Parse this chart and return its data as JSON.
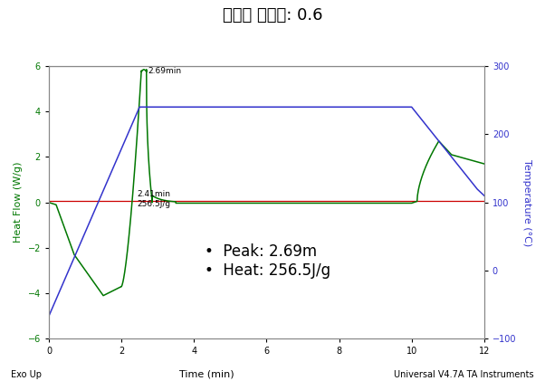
{
  "title": "경화제 당량비: 0.6",
  "xlabel": "Time (min)",
  "ylabel_left": "Heat Flow (W/g)",
  "ylabel_right": "Temperature (°C)",
  "xlim": [
    0,
    12
  ],
  "ylim_left": [
    -6,
    6
  ],
  "ylim_right": [
    -100,
    300
  ],
  "yticks_left": [
    -6,
    -4,
    -2,
    0,
    2,
    4,
    6
  ],
  "yticks_right": [
    -100,
    0,
    100,
    200,
    300
  ],
  "xticks": [
    0,
    2,
    4,
    6,
    8,
    10,
    12
  ],
  "annotation1_text": "2.69min",
  "annotation2_text": "2.41min\n256.5J/g",
  "legend_text": "   Peak: 2.69m\n   Heat: 256.5J/g",
  "footer_left": "Exo Up",
  "footer_center": "Time (min)",
  "footer_right": "Universal V4.7A TA Instruments",
  "green_color": "#007700",
  "blue_color": "#3333CC",
  "red_color": "#CC0000",
  "background_color": "#FFFFFF"
}
